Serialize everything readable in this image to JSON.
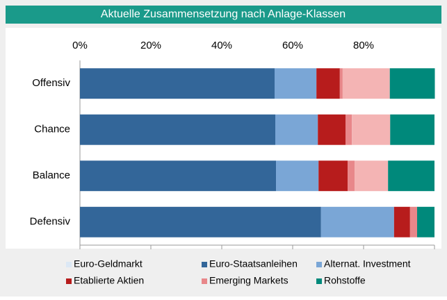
{
  "chart_data": {
    "type": "stacked-barh",
    "title": "Aktuelle Zusammensetzung nach Anlage-Klassen",
    "categories": [
      "Offensiv",
      "Chance",
      "Balance",
      "Defensiv"
    ],
    "series": [
      {
        "name": "Euro-Geldmarkt",
        "color": "#dce8f5",
        "values": [
          0,
          0,
          0,
          0
        ]
      },
      {
        "name": "Euro-Staatsanleihen",
        "color": "#336699",
        "values": [
          54.9,
          55.1,
          55.3,
          68.0
        ]
      },
      {
        "name": "Alternat. Investment",
        "color": "#7aa6d6",
        "values": [
          11.8,
          12.0,
          12.0,
          20.6
        ]
      },
      {
        "name": "Etablierte Aktien",
        "color": "#b71c1c",
        "values": [
          6.6,
          7.8,
          8.2,
          4.5
        ]
      },
      {
        "name": "Emerging Markets",
        "color": "#e8878a",
        "values": [
          0.8,
          1.8,
          2.0,
          2.0
        ]
      },
      {
        "color": "#f4b4b4",
        "values": [
          13.3,
          10.8,
          9.4,
          0
        ]
      },
      {
        "name": "Rohstoffe",
        "color": "#00897b",
        "values": [
          12.7,
          12.5,
          13.1,
          4.9
        ]
      }
    ],
    "xlim": [
      0,
      100
    ],
    "xticks": [
      {
        "value": 0,
        "label": "0%"
      },
      {
        "value": 20,
        "label": "20%"
      },
      {
        "value": 40,
        "label": "40%"
      },
      {
        "value": 60,
        "label": "60%"
      },
      {
        "value": 80,
        "label": "80%"
      }
    ]
  }
}
